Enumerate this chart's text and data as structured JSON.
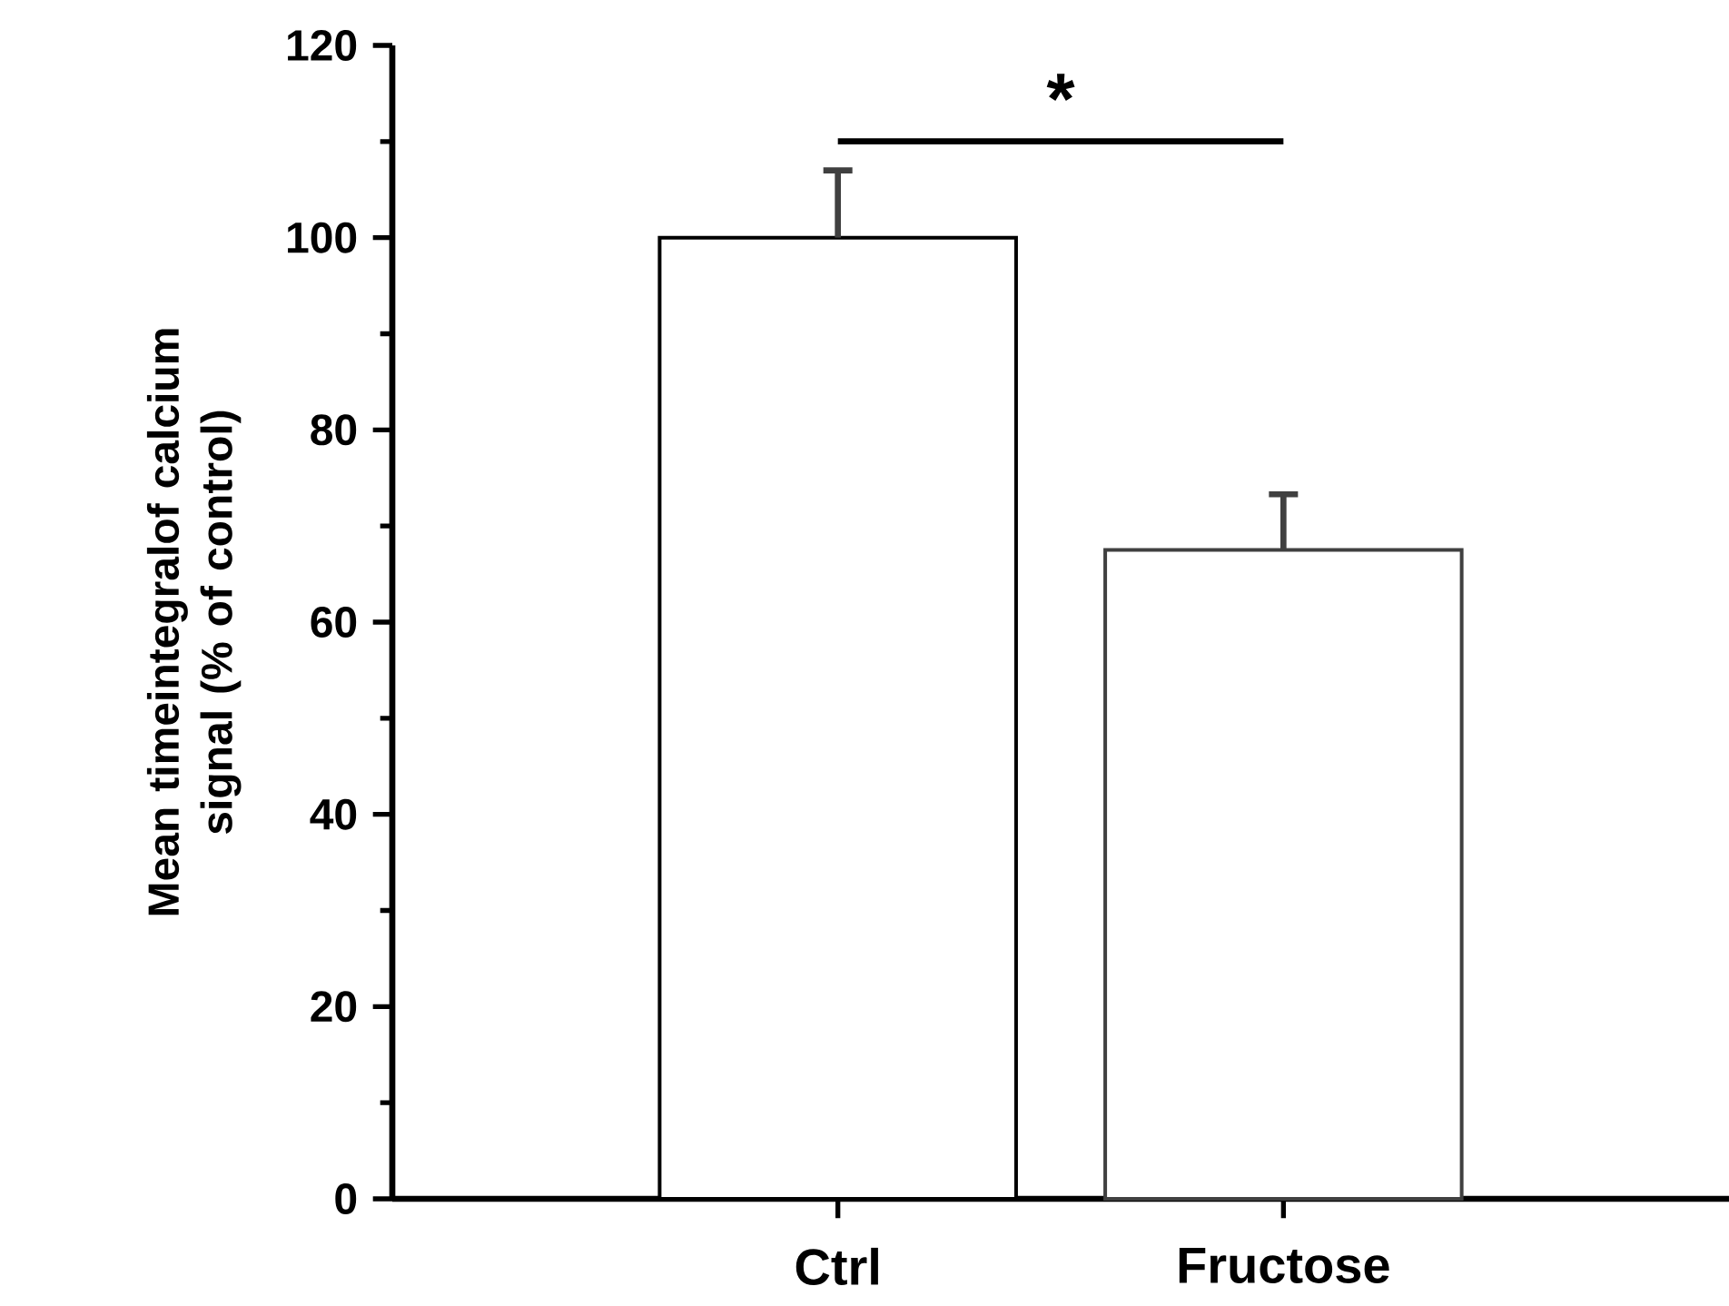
{
  "chart_data": {
    "type": "bar",
    "ylabel": "Mean timeintegralof calcium signal (% of control)",
    "categories": [
      "Ctrl",
      "Fructose"
    ],
    "values": [
      100,
      67.5
    ],
    "errors": [
      [
        100,
        107
      ],
      [
        67.5,
        73.3
      ]
    ],
    "colors": [
      "#ffffff",
      "#ffffff"
    ],
    "ylim": [
      0,
      120
    ],
    "yticks": [
      0,
      20,
      40,
      60,
      80,
      100,
      120
    ],
    "annotations": [
      "*"
    ],
    "grid": false
  }
}
